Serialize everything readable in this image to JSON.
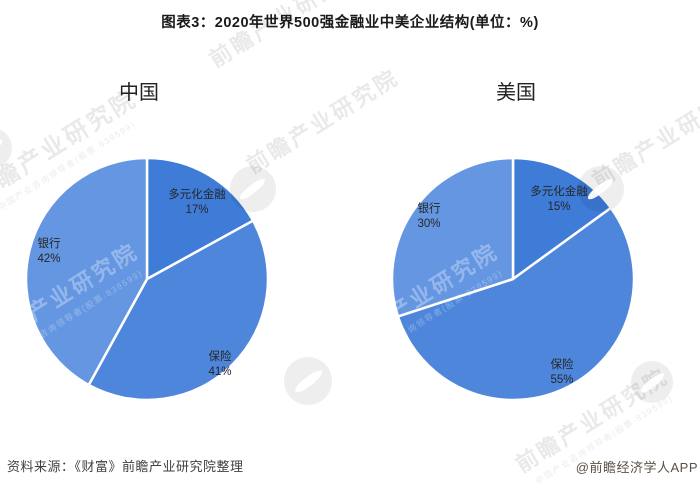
{
  "title": "图表3：2020年世界500强金融业中美企业结构(单位：%)",
  "footer": {
    "source": "资料来源：《财富》前瞻产业研究院整理",
    "credit": "@前瞻经济学人APP"
  },
  "watermark": {
    "main": "前瞻产业研究院",
    "sub": "中国产业咨询领导者(股票·839599)"
  },
  "colors": {
    "diversified_finance": "#3E7CD8",
    "insurance": "#4E86DC",
    "bank": "#6496E2",
    "label_text": "#262626",
    "slice_border": "#ffffff"
  },
  "chart_data": [
    {
      "id": "china",
      "type": "pie",
      "title": "中国",
      "unit": "%",
      "labels": [
        "多元化金融",
        "保险",
        "银行"
      ],
      "values": [
        17,
        41,
        42
      ],
      "value_labels": [
        "17%",
        "41%",
        "42%"
      ],
      "colors": [
        "#3E7CD8",
        "#4E86DC",
        "#6496E2"
      ],
      "start_angle": "top",
      "direction": "clockwise",
      "legend": "none"
    },
    {
      "id": "usa",
      "type": "pie",
      "title": "美国",
      "unit": "%",
      "labels": [
        "多元化金融",
        "保险",
        "银行"
      ],
      "values": [
        15,
        55,
        30
      ],
      "value_labels": [
        "15%",
        "55%",
        "30%"
      ],
      "colors": [
        "#3E7CD8",
        "#4E86DC",
        "#6496E2"
      ],
      "start_angle": "top",
      "direction": "clockwise",
      "legend": "none"
    }
  ]
}
